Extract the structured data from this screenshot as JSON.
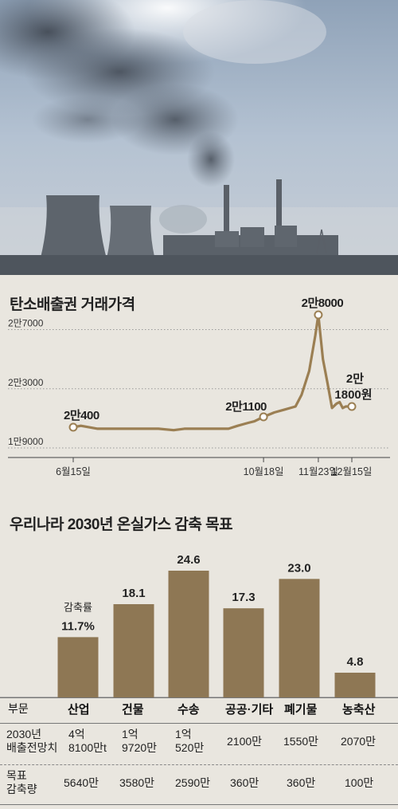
{
  "line_section": {
    "title": "탄소배출권 거래가격"
  },
  "bar_section": {
    "title": "우리나라 2030년 온실가스 감축 목표",
    "rate_label": "감축률"
  },
  "chart_data": [
    {
      "type": "line",
      "title": "탄소배출권 거래가격",
      "y_tick_labels": [
        "1만9000",
        "2만3000",
        "2만7000"
      ],
      "y_ticks": [
        19000,
        23000,
        27000
      ],
      "ylim": [
        19000,
        28000
      ],
      "x_tick_labels": [
        "6월15일",
        "10월18일",
        "11월23일",
        "12월15일"
      ],
      "x_ticks": [
        "06-15",
        "10-18",
        "11-23",
        "12-15"
      ],
      "grid": "dotted horizontal",
      "series": [
        {
          "color": "#9b7f53",
          "points": [
            [
              "06-15",
              20400
            ],
            [
              "06-20",
              20500
            ],
            [
              "07-01",
              20300
            ],
            [
              "07-20",
              20300
            ],
            [
              "08-10",
              20300
            ],
            [
              "08-20",
              20200
            ],
            [
              "08-27",
              20300
            ],
            [
              "09-10",
              20300
            ],
            [
              "09-25",
              20300
            ],
            [
              "10-01",
              20500
            ],
            [
              "10-08",
              20700
            ],
            [
              "10-12",
              20800
            ],
            [
              "10-18",
              21100
            ],
            [
              "10-25",
              21400
            ],
            [
              "11-01",
              21600
            ],
            [
              "11-08",
              21800
            ],
            [
              "11-12",
              22600
            ],
            [
              "11-17",
              24200
            ],
            [
              "11-21",
              26600
            ],
            [
              "11-23",
              28000
            ],
            [
              "11-26",
              25000
            ],
            [
              "11-29",
              23400
            ],
            [
              "12-02",
              21700
            ],
            [
              "12-05",
              22000
            ],
            [
              "12-07",
              22100
            ],
            [
              "12-09",
              21700
            ],
            [
              "12-11",
              21800
            ],
            [
              "12-15",
              21800
            ]
          ]
        }
      ],
      "annotations": [
        {
          "x": "06-15",
          "y": 20400,
          "label": "2만400"
        },
        {
          "x": "10-18",
          "y": 21100,
          "label": "2만1100"
        },
        {
          "x": "11-23",
          "y": 28000,
          "label": "2만8000"
        },
        {
          "x": "12-15",
          "y": 21800,
          "label_line1": "2만",
          "label_line2": "1800원"
        }
      ]
    },
    {
      "type": "bar",
      "title": "우리나라 2030년 온실가스 감축 목표",
      "categories": [
        "산업",
        "건물",
        "수송",
        "공공·기타",
        "폐기물",
        "농축산"
      ],
      "values": [
        11.7,
        18.1,
        24.6,
        17.3,
        23.0,
        4.8
      ],
      "value_labels": [
        "11.7%",
        "18.1",
        "24.6",
        "17.3",
        "23.0",
        "4.8"
      ],
      "ylim": [
        0,
        24.6
      ],
      "bar_color": "#8e7754"
    }
  ],
  "table": {
    "header": "부문",
    "rows": [
      {
        "label": "2030년\n배출전망치",
        "cells": [
          "4억\n8100만t",
          "1억\n9720만",
          "1억\n520만",
          "2100만",
          "1550만",
          "2070만"
        ]
      },
      {
        "label": "목표\n감축량",
        "cells": [
          "5640만",
          "3580만",
          "2590만",
          "360만",
          "360만",
          "100만"
        ]
      }
    ]
  }
}
